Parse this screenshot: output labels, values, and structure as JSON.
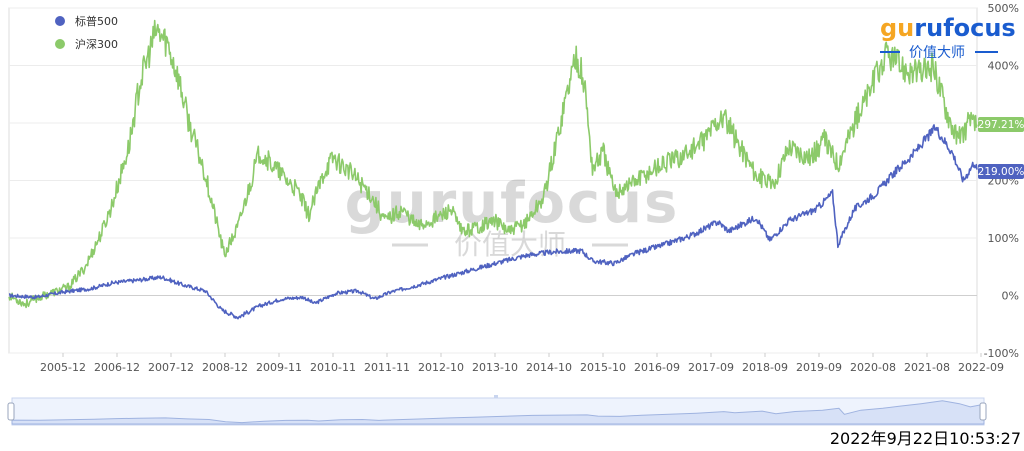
{
  "chart_data": {
    "type": "line",
    "x_ticks": [
      "2005-12",
      "2006-12",
      "2007-12",
      "2008-12",
      "2009-11",
      "2010-11",
      "2011-11",
      "2012-10",
      "2013-10",
      "2014-10",
      "2015-10",
      "2016-09",
      "2017-09",
      "2018-09",
      "2019-09",
      "2020-08",
      "2021-08",
      "2022-09"
    ],
    "y_ticks": [
      "500%",
      "400%",
      "300%",
      "200%",
      "100%",
      "0%",
      "-100%"
    ],
    "ylim": [
      -100,
      500
    ],
    "grid": true,
    "legend_position": "top-left",
    "series": [
      {
        "name": "标普500",
        "color": "#4f62c0",
        "end_label": "219.00%",
        "values": [
          [
            2005.0,
            0
          ],
          [
            2005.5,
            -3
          ],
          [
            2006.0,
            6
          ],
          [
            2006.5,
            12
          ],
          [
            2006.9,
            22
          ],
          [
            2007.3,
            26
          ],
          [
            2007.8,
            32
          ],
          [
            2008.2,
            18
          ],
          [
            2008.6,
            8
          ],
          [
            2008.9,
            -25
          ],
          [
            2009.2,
            -38
          ],
          [
            2009.6,
            -18
          ],
          [
            2010.0,
            -6
          ],
          [
            2010.4,
            -3
          ],
          [
            2010.6,
            -14
          ],
          [
            2011.0,
            4
          ],
          [
            2011.4,
            8
          ],
          [
            2011.7,
            -6
          ],
          [
            2012.0,
            6
          ],
          [
            2012.5,
            18
          ],
          [
            2013.0,
            32
          ],
          [
            2013.5,
            45
          ],
          [
            2014.0,
            58
          ],
          [
            2014.5,
            70
          ],
          [
            2015.0,
            76
          ],
          [
            2015.5,
            78
          ],
          [
            2015.7,
            60
          ],
          [
            2016.1,
            56
          ],
          [
            2016.5,
            74
          ],
          [
            2017.0,
            88
          ],
          [
            2017.5,
            104
          ],
          [
            2018.0,
            128
          ],
          [
            2018.2,
            112
          ],
          [
            2018.7,
            136
          ],
          [
            2018.95,
            96
          ],
          [
            2019.3,
            130
          ],
          [
            2019.8,
            150
          ],
          [
            2020.1,
            178
          ],
          [
            2020.2,
            88
          ],
          [
            2020.5,
            150
          ],
          [
            2020.9,
            178
          ],
          [
            2021.2,
            210
          ],
          [
            2021.6,
            248
          ],
          [
            2021.99,
            292
          ],
          [
            2022.3,
            248
          ],
          [
            2022.5,
            200
          ],
          [
            2022.7,
            232
          ],
          [
            2022.75,
            219
          ]
        ]
      },
      {
        "name": "沪深300",
        "color": "#8cca6a",
        "end_label": "297.21%",
        "values": [
          [
            2005.0,
            0
          ],
          [
            2005.3,
            -15
          ],
          [
            2005.5,
            -5
          ],
          [
            2005.8,
            5
          ],
          [
            2006.1,
            15
          ],
          [
            2006.4,
            50
          ],
          [
            2006.7,
            110
          ],
          [
            2006.9,
            160
          ],
          [
            2007.2,
            260
          ],
          [
            2007.4,
            370
          ],
          [
            2007.7,
            460
          ],
          [
            2007.9,
            440
          ],
          [
            2008.1,
            380
          ],
          [
            2008.3,
            300
          ],
          [
            2008.6,
            210
          ],
          [
            2008.8,
            130
          ],
          [
            2008.95,
            70
          ],
          [
            2009.2,
            120
          ],
          [
            2009.5,
            220
          ],
          [
            2009.6,
            250
          ],
          [
            2009.8,
            230
          ],
          [
            2010.0,
            210
          ],
          [
            2010.3,
            180
          ],
          [
            2010.5,
            140
          ],
          [
            2010.8,
            220
          ],
          [
            2010.95,
            240
          ],
          [
            2011.3,
            210
          ],
          [
            2011.6,
            180
          ],
          [
            2011.9,
            130
          ],
          [
            2012.2,
            150
          ],
          [
            2012.5,
            120
          ],
          [
            2012.95,
            140
          ],
          [
            2013.1,
            150
          ],
          [
            2013.3,
            110
          ],
          [
            2013.6,
            120
          ],
          [
            2013.9,
            130
          ],
          [
            2014.2,
            110
          ],
          [
            2014.5,
            130
          ],
          [
            2014.8,
            170
          ],
          [
            2015.0,
            250
          ],
          [
            2015.2,
            340
          ],
          [
            2015.4,
            420
          ],
          [
            2015.55,
            370
          ],
          [
            2015.7,
            220
          ],
          [
            2015.9,
            250
          ],
          [
            2016.1,
            180
          ],
          [
            2016.5,
            200
          ],
          [
            2016.9,
            225
          ],
          [
            2017.3,
            240
          ],
          [
            2017.7,
            265
          ],
          [
            2017.95,
            300
          ],
          [
            2018.1,
            310
          ],
          [
            2018.4,
            260
          ],
          [
            2018.7,
            210
          ],
          [
            2019.0,
            190
          ],
          [
            2019.3,
            260
          ],
          [
            2019.7,
            240
          ],
          [
            2019.95,
            270
          ],
          [
            2020.2,
            230
          ],
          [
            2020.5,
            300
          ],
          [
            2020.8,
            360
          ],
          [
            2021.1,
            420
          ],
          [
            2021.4,
            395
          ],
          [
            2021.7,
            385
          ],
          [
            2021.95,
            400
          ],
          [
            2022.2,
            320
          ],
          [
            2022.4,
            270
          ],
          [
            2022.6,
            300
          ],
          [
            2022.75,
            297
          ]
        ]
      }
    ]
  },
  "watermark": {
    "brand": "gurufocus",
    "subtitle": "价值大师"
  },
  "logo": {
    "gu": "gu",
    "ru": "ru",
    "focus": "focus",
    "subtitle": "价值大师",
    "color_orange": "#f5a623",
    "color_blue": "#1a5ccf"
  },
  "timestamp": "2022年9月22日10:53:27"
}
